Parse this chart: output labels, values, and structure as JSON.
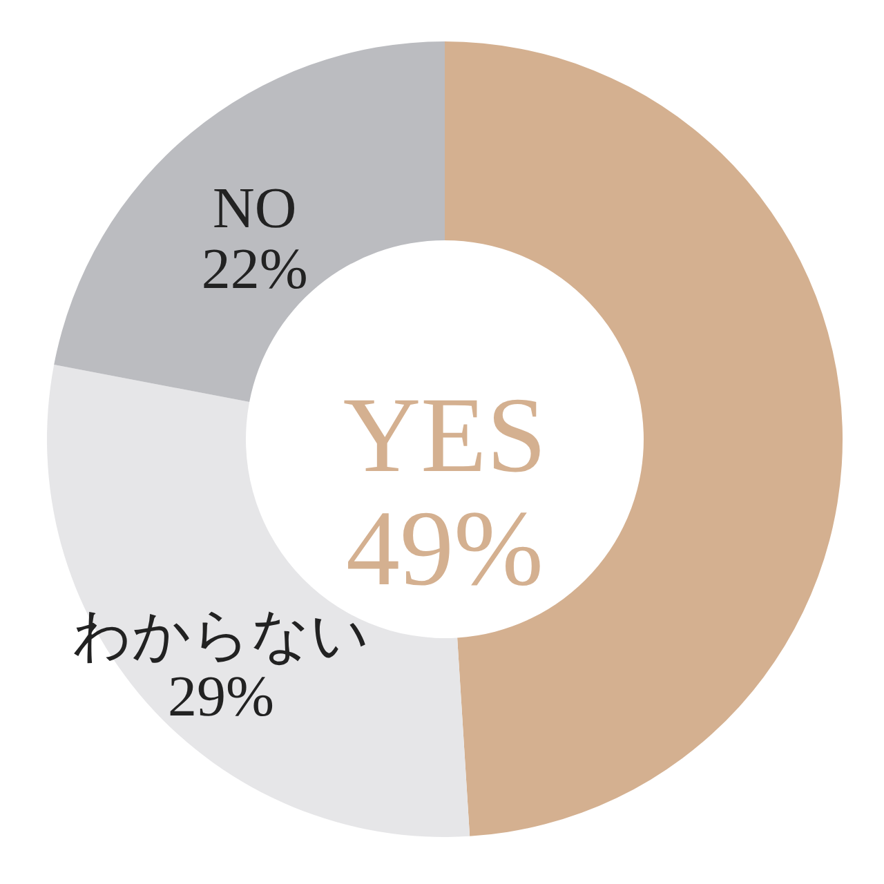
{
  "chart_data": {
    "type": "donut",
    "categories": [
      "YES",
      "わからない",
      "NO"
    ],
    "values": [
      49,
      29,
      22
    ],
    "colors": [
      "#d4b090",
      "#e6e6e8",
      "#bbbcc0"
    ],
    "value_labels": [
      "49%",
      "29%",
      "22%"
    ],
    "legend": false
  }
}
